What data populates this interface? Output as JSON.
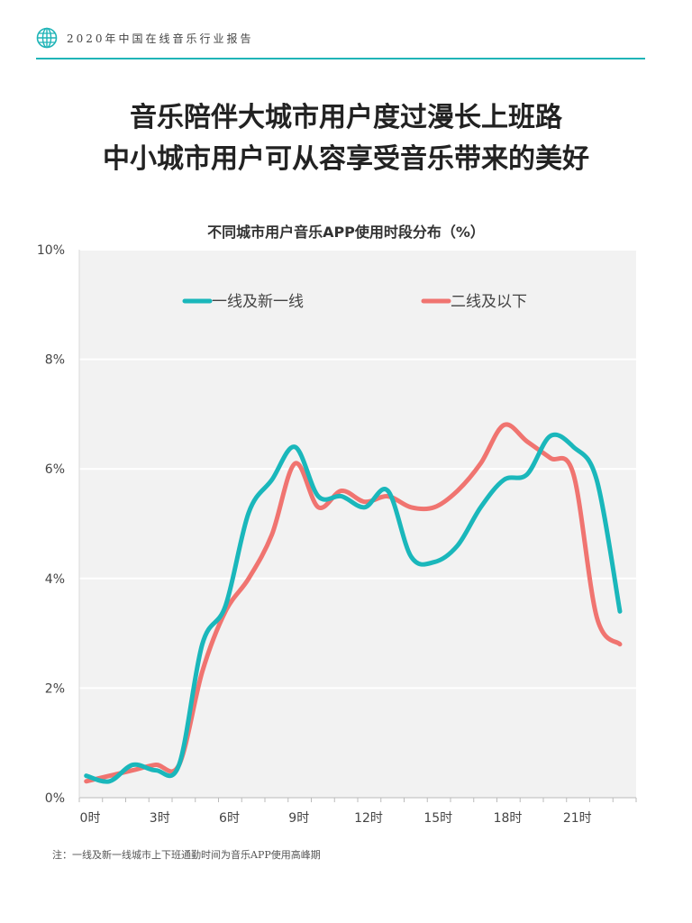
{
  "header": {
    "title": "2020年中国在线音乐行业报告",
    "icon": "globe-icon"
  },
  "main_title": {
    "line1": "音乐陪伴大城市用户度过漫长上班路",
    "line2": "中小城市用户可从容享受音乐带来的美好"
  },
  "footnote": "注：一线及新一线城市上下班通勤时间为音乐APP使用高峰期",
  "colors": {
    "accent": "#1fb4b7",
    "series1": "#1ab7bb",
    "series2": "#f07470",
    "plot_bg": "#f2f2f2"
  },
  "chart_data": {
    "type": "line",
    "title": "不同城市用户音乐APP使用时段分布（%）",
    "xlabel": "",
    "ylabel": "",
    "x": [
      0,
      1,
      2,
      3,
      4,
      5,
      6,
      7,
      8,
      9,
      10,
      11,
      12,
      13,
      14,
      15,
      16,
      17,
      18,
      19,
      20,
      21,
      22,
      23
    ],
    "x_tick_labels": [
      "0时",
      "3时",
      "6时",
      "9时",
      "12时",
      "15时",
      "18时",
      "21时"
    ],
    "x_tick_values": [
      0,
      3,
      6,
      9,
      12,
      15,
      18,
      21
    ],
    "ylim": [
      0,
      10
    ],
    "y_ticks": [
      0,
      2,
      4,
      6,
      8,
      10
    ],
    "y_tick_labels": [
      "0%",
      "2%",
      "4%",
      "6%",
      "8%",
      "10%"
    ],
    "grid": "horizontal",
    "legend_position": "top",
    "series": [
      {
        "name": "一线及新一线",
        "color": "#1ab7bb",
        "values": [
          0.4,
          0.3,
          0.6,
          0.5,
          0.6,
          2.8,
          3.5,
          5.2,
          5.8,
          6.4,
          5.5,
          5.5,
          5.3,
          5.6,
          4.4,
          4.3,
          4.6,
          5.3,
          5.8,
          5.9,
          6.6,
          6.4,
          5.8,
          3.4
        ]
      },
      {
        "name": "二线及以下",
        "color": "#f07470",
        "values": [
          0.3,
          0.4,
          0.5,
          0.6,
          0.6,
          2.3,
          3.4,
          4.0,
          4.8,
          6.1,
          5.3,
          5.6,
          5.4,
          5.5,
          5.3,
          5.3,
          5.6,
          6.1,
          6.8,
          6.5,
          6.2,
          5.9,
          3.3,
          2.8
        ]
      }
    ]
  }
}
